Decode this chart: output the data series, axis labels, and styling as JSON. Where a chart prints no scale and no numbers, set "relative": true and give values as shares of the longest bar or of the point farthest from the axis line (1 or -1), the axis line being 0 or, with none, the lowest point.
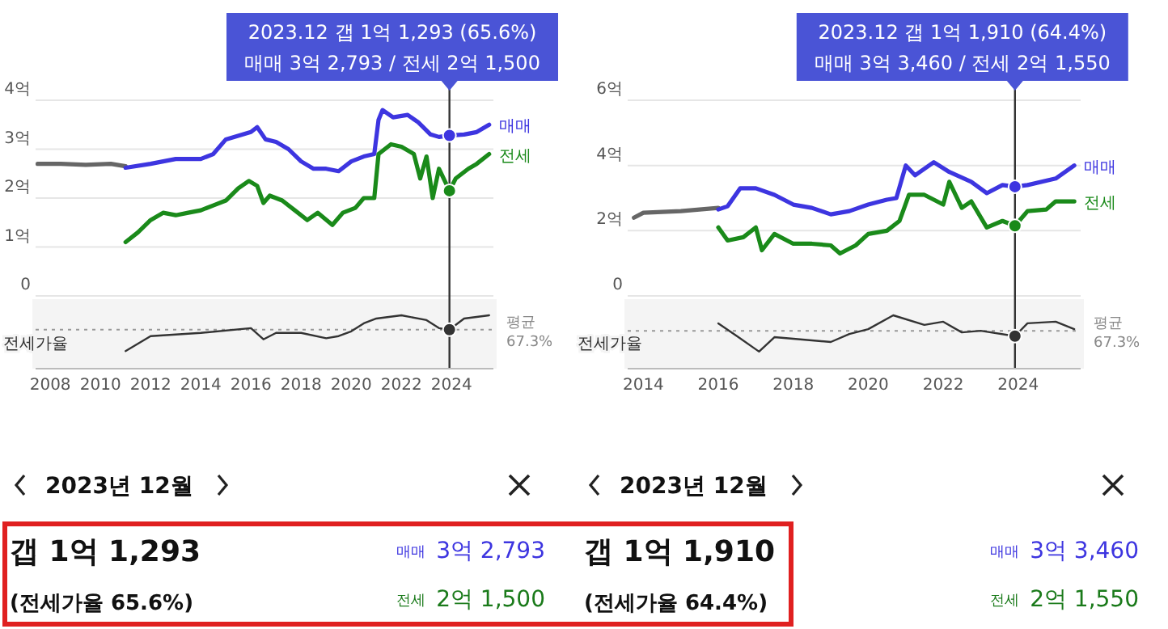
{
  "chart_data": [
    {
      "type": "line",
      "tick_labels": "y",
      "grid": "y",
      "xlim": [
        "2007-06",
        "2025-09"
      ],
      "ylim": [
        0,
        4
      ],
      "yticks": [
        0,
        {
          "value": 1,
          "label": "1억"
        },
        {
          "value": 2,
          "label": "2억"
        },
        {
          "value": 3,
          "label": "3억"
        },
        {
          "value": 4,
          "label": "4억"
        }
      ],
      "series": [
        {
          "color": "#666666",
          "x": [
            "2007-07",
            "2008-06",
            "2009-06",
            "2010-06",
            "2011-01"
          ],
          "values": [
            2.7,
            2.7,
            2.68,
            2.7,
            2.65
          ]
        },
        {
          "name": "매매",
          "color": "#3d35e0",
          "x": [
            "2011-01",
            "2012-01",
            "2013-01",
            "2014-01",
            "2014-07",
            "2015-01",
            "2016-01",
            "2016-04",
            "2016-08",
            "2017-01",
            "2017-07",
            "2018-01",
            "2018-07",
            "2019-01",
            "2019-07",
            "2020-01",
            "2020-07",
            "2020-12",
            "2021-02",
            "2021-04",
            "2021-09",
            "2022-04",
            "2022-09",
            "2023-03",
            "2023-07",
            "2023-12",
            "2024-07",
            "2025-01",
            "2025-07"
          ],
          "values": [
            2.62,
            2.7,
            2.8,
            2.8,
            2.9,
            3.2,
            3.35,
            3.45,
            3.2,
            3.15,
            3.0,
            2.75,
            2.6,
            2.6,
            2.55,
            2.75,
            2.85,
            2.9,
            3.6,
            3.8,
            3.65,
            3.7,
            3.55,
            3.3,
            3.25,
            3.28,
            3.3,
            3.35,
            3.5
          ]
        },
        {
          "name": "전세",
          "color": "#1a8a1a",
          "x": [
            "2011-01",
            "2011-07",
            "2012-01",
            "2012-07",
            "2013-01",
            "2013-07",
            "2014-01",
            "2014-07",
            "2015-01",
            "2015-07",
            "2015-12",
            "2016-04",
            "2016-07",
            "2016-10",
            "2017-04",
            "2017-10",
            "2018-04",
            "2018-09",
            "2019-04",
            "2019-09",
            "2020-03",
            "2020-07",
            "2020-12",
            "2021-02",
            "2021-08",
            "2022-01",
            "2022-07",
            "2022-10",
            "2023-01",
            "2023-04",
            "2023-07",
            "2023-12",
            "2024-03",
            "2024-09",
            "2025-01",
            "2025-07"
          ],
          "values": [
            1.1,
            1.3,
            1.55,
            1.7,
            1.65,
            1.7,
            1.75,
            1.85,
            1.95,
            2.2,
            2.35,
            2.25,
            1.9,
            2.05,
            1.95,
            1.75,
            1.55,
            1.7,
            1.45,
            1.7,
            1.8,
            2.0,
            2.0,
            2.9,
            3.1,
            3.05,
            2.9,
            2.4,
            2.85,
            2.0,
            2.6,
            2.15,
            2.4,
            2.6,
            2.7,
            2.9
          ]
        }
      ],
      "ref_lines": [
        {
          "axis": "x",
          "value": "2023-12"
        }
      ],
      "annotations": [
        "2023.12  갭 1억 1,293 (65.6%)",
        "매매 3억 2,793 / 전세 2억 1,500"
      ]
    },
    {
      "type": "line",
      "relative": true,
      "tick_labels": "x",
      "ylabel": "전세가율",
      "xlim": [
        "2007-06",
        "2025-09"
      ],
      "xticks": [
        {
          "value": "2008",
          "label": "2008"
        },
        {
          "value": "2010",
          "label": "2010"
        },
        {
          "value": "2012",
          "label": "2012"
        },
        {
          "value": "2014",
          "label": "2014"
        },
        {
          "value": "2016",
          "label": "2016"
        },
        {
          "value": "2018",
          "label": "2018"
        },
        {
          "value": "2020",
          "label": "2020"
        },
        {
          "value": "2022",
          "label": "2022"
        },
        {
          "value": "2024",
          "label": "2024"
        }
      ],
      "series": [
        {
          "color": "#333333",
          "x": [
            "2011-01",
            "2012-01",
            "2014-01",
            "2016-01",
            "2016-07",
            "2017-01",
            "2018-01",
            "2019-01",
            "2019-07",
            "2020-01",
            "2020-07",
            "2021-01",
            "2022-01",
            "2023-01",
            "2023-07",
            "2023-12",
            "2024-07",
            "2025-07"
          ],
          "values": [
            0.33,
            0.61,
            0.67,
            0.76,
            0.55,
            0.67,
            0.67,
            0.57,
            0.61,
            0.7,
            0.85,
            0.94,
            1,
            0.91,
            0.76,
            0.73,
            0.94,
            1
          ]
        }
      ],
      "ref_lines": [
        {
          "axis": "y",
          "value": 0.73,
          "label": "평균 67.3%",
          "line_style": "dotted"
        },
        {
          "axis": "x",
          "value": "2023-12"
        }
      ]
    },
    {
      "type": "line",
      "tick_labels": "y",
      "grid": "y",
      "xlim": [
        "2013-08",
        "2025-09"
      ],
      "ylim": [
        0,
        6
      ],
      "yticks": [
        0,
        {
          "value": 2,
          "label": "2억"
        },
        {
          "value": 4,
          "label": "4억"
        },
        {
          "value": 6,
          "label": "6억"
        }
      ],
      "series": [
        {
          "color": "#666666",
          "x": [
            "2013-10",
            "2014-01",
            "2015-01",
            "2016-01"
          ],
          "values": [
            2.4,
            2.55,
            2.6,
            2.7
          ]
        },
        {
          "name": "매매",
          "color": "#3d35e0",
          "x": [
            "2016-01",
            "2016-04",
            "2016-08",
            "2017-01",
            "2017-07",
            "2018-01",
            "2018-07",
            "2019-01",
            "2019-07",
            "2020-01",
            "2020-07",
            "2020-10",
            "2021-01",
            "2021-04",
            "2021-10",
            "2022-03",
            "2022-10",
            "2023-03",
            "2023-08",
            "2023-12",
            "2024-04",
            "2025-01",
            "2025-07"
          ],
          "values": [
            2.65,
            2.75,
            3.3,
            3.3,
            3.1,
            2.8,
            2.7,
            2.5,
            2.6,
            2.8,
            2.95,
            3.0,
            4.0,
            3.7,
            4.1,
            3.8,
            3.5,
            3.15,
            3.4,
            3.35,
            3.4,
            3.6,
            4.0
          ]
        },
        {
          "name": "전세",
          "color": "#1a8a1a",
          "x": [
            "2016-01",
            "2016-04",
            "2016-09",
            "2017-01",
            "2017-03",
            "2017-07",
            "2018-01",
            "2018-07",
            "2019-01",
            "2019-04",
            "2019-09",
            "2020-01",
            "2020-07",
            "2020-11",
            "2021-02",
            "2021-07",
            "2022-01",
            "2022-03",
            "2022-07",
            "2022-10",
            "2023-03",
            "2023-08",
            "2023-12",
            "2024-04",
            "2024-10",
            "2025-01",
            "2025-07"
          ],
          "values": [
            2.1,
            1.7,
            1.8,
            2.1,
            1.4,
            1.9,
            1.6,
            1.6,
            1.55,
            1.3,
            1.55,
            1.9,
            2.0,
            2.3,
            3.1,
            3.1,
            2.8,
            3.5,
            2.7,
            2.9,
            2.1,
            2.3,
            2.15,
            2.6,
            2.65,
            2.9,
            2.9
          ]
        }
      ],
      "ref_lines": [
        {
          "axis": "x",
          "value": "2023-12"
        }
      ],
      "annotations": [
        "2023.12  갭 1억 1,910 (64.4%)",
        "매매 3억 3,460 / 전세 2억 1,550"
      ]
    },
    {
      "type": "line",
      "relative": true,
      "tick_labels": "x",
      "ylabel": "전세가율",
      "xlim": [
        "2013-08",
        "2025-09"
      ],
      "xticks": [
        {
          "value": "2014",
          "label": "2014"
        },
        {
          "value": "2016",
          "label": "2016"
        },
        {
          "value": "2018",
          "label": "2018"
        },
        {
          "value": "2020",
          "label": "2020"
        },
        {
          "value": "2022",
          "label": "2022"
        },
        {
          "value": "2024",
          "label": "2024"
        }
      ],
      "series": [
        {
          "color": "#333333",
          "x": [
            "2016-01",
            "2016-07",
            "2017-02",
            "2017-07",
            "2018-01",
            "2019-01",
            "2019-07",
            "2020-01",
            "2020-09",
            "2021-07",
            "2022-01",
            "2022-07",
            "2023-01",
            "2023-12",
            "2024-04",
            "2025-01",
            "2025-07"
          ],
          "values": [
            0.85,
            0.61,
            0.32,
            0.59,
            0.56,
            0.5,
            0.65,
            0.74,
            1,
            0.82,
            0.88,
            0.68,
            0.71,
            0.61,
            0.85,
            0.88,
            0.74
          ]
        }
      ],
      "ref_lines": [
        {
          "axis": "y",
          "value": 0.71,
          "label": "평균 67.3%",
          "line_style": "dotted"
        },
        {
          "axis": "x",
          "value": "2023-12"
        }
      ]
    },
    {
      "type": "other",
      "title": "2023년 12월",
      "annotations": [
        "갭 1억 1,293",
        "(전세가율 65.6%)",
        "매매",
        "3억 2,793",
        "전세",
        "2억 1,500"
      ]
    },
    {
      "type": "other",
      "title": "2023년 12월",
      "annotations": [
        "갭 1억 1,910",
        "(전세가율 64.4%)",
        "매매",
        "3억 3,460",
        "전세",
        "2억 1,550"
      ]
    }
  ]
}
